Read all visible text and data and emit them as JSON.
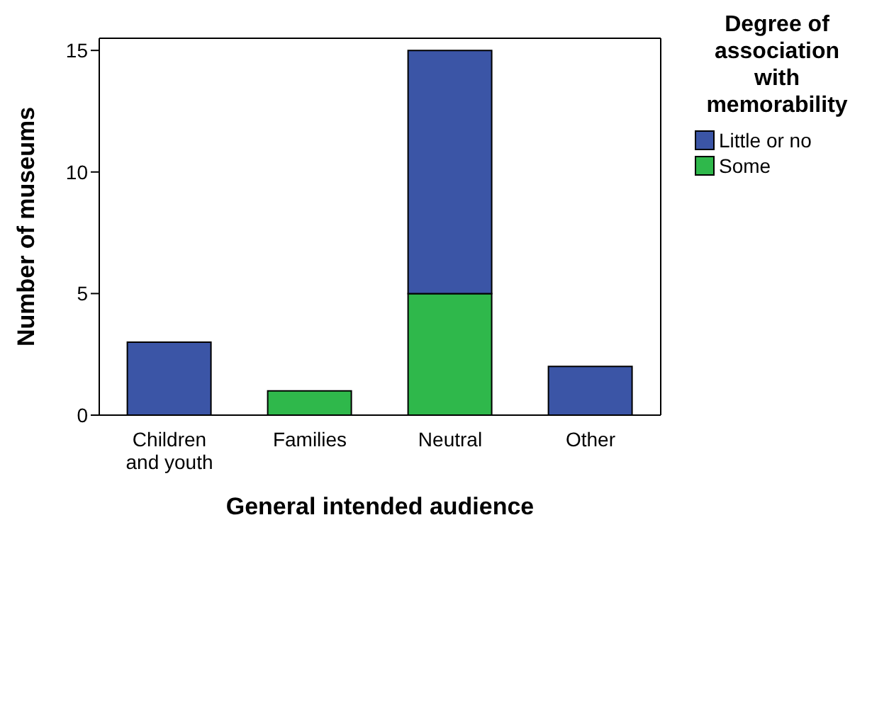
{
  "chart_data": {
    "type": "bar",
    "xlabel": "General intended audience",
    "ylabel": "Number of museums",
    "legend_title": "Degree of association with memorability",
    "categories": [
      "Children and youth",
      "Families",
      "Neutral",
      "Other"
    ],
    "stacked": true,
    "series": [
      {
        "name": "Some",
        "color": "#2fb84b",
        "values": [
          0,
          1,
          5,
          0
        ]
      },
      {
        "name": "Little or no",
        "color": "#3b55a6",
        "values": [
          3,
          0,
          10,
          2
        ]
      }
    ],
    "ylim": [
      0,
      15.5
    ],
    "yticks": [
      0,
      5,
      10,
      15
    ],
    "grid": false,
    "legend": "right"
  }
}
